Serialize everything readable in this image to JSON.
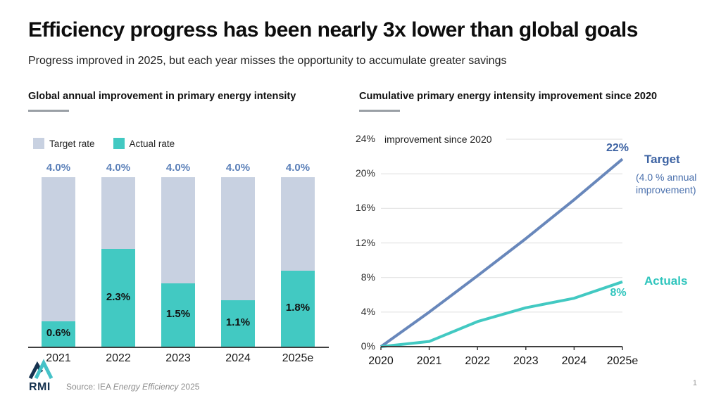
{
  "slide": {
    "title": "Efficiency progress has been nearly 3x lower than global goals",
    "subtitle": "Progress improved in 2025, but each year misses the opportunity to accumulate greater savings",
    "page_number": "1",
    "source": {
      "prefix": "Source: IEA ",
      "italic": "Energy Efficiency",
      "suffix": " 2025"
    },
    "logo_text": "RMI"
  },
  "colors": {
    "target_fill": "#c8d1e1",
    "actual_fill": "#42c9c2",
    "target_line": "#6887bb",
    "target_label_blue": "#5b80b9",
    "target_text_blue": "#3d63a3",
    "actuals_text_teal": "#2fc5bd",
    "axis": "#3f3f3f",
    "gridline": "#e3e3e3",
    "logo_navy": "#16324f",
    "logo_teal": "#45c2c8"
  },
  "chart_data": [
    {
      "type": "bar",
      "title": "Global annual improvement in primary energy intensity",
      "categories": [
        "2021",
        "2022",
        "2023",
        "2024",
        "2025e"
      ],
      "series": [
        {
          "name": "Target rate",
          "values": [
            4.0,
            4.0,
            4.0,
            4.0,
            4.0
          ],
          "color": "#c8d1e1"
        },
        {
          "name": "Actual rate",
          "values": [
            0.6,
            2.3,
            1.5,
            1.1,
            1.8
          ],
          "color": "#42c9c2"
        }
      ],
      "target_labels": [
        "4.0%",
        "4.0%",
        "4.0%",
        "4.0%",
        "4.0%"
      ],
      "actual_labels": [
        "0.6%",
        "2.3%",
        "1.5%",
        "1.1%",
        "1.8%"
      ],
      "ylim": [
        0,
        4
      ],
      "layout": "stacked bars, actual overlaid at bottom of target, no y-axis shown"
    },
    {
      "type": "line",
      "title": "Cumulative primary energy intensity improvement since 2020",
      "axis_note": "improvement since 2020",
      "x": [
        "2020",
        "2021",
        "2022",
        "2023",
        "2024",
        "2025e"
      ],
      "series": [
        {
          "name": "Target",
          "values": [
            0,
            4.0,
            8.2,
            12.5,
            17.0,
            21.7
          ],
          "color": "#6887bb",
          "end_label": "22%",
          "sub_label": "(4.0 % annual improvement)"
        },
        {
          "name": "Actuals",
          "values": [
            0,
            0.6,
            2.9,
            4.5,
            5.6,
            7.5
          ],
          "color": "#42c9c2",
          "end_label": "8%"
        }
      ],
      "yticks": [
        0,
        4,
        8,
        12,
        16,
        20,
        24
      ],
      "ytick_labels": [
        "0%",
        "4%",
        "8%",
        "12%",
        "16%",
        "20%",
        "24%"
      ],
      "ylim": [
        0,
        24
      ],
      "grid": "horizontal light gridlines, top gridline partial"
    }
  ]
}
